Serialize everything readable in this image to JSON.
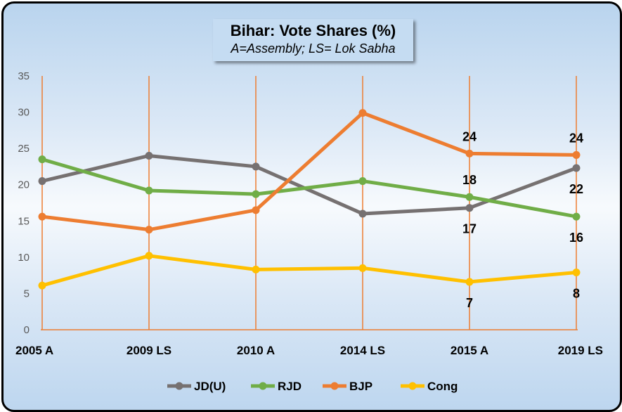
{
  "chart_data": {
    "type": "line",
    "title": "Bihar: Vote Shares (%)",
    "subtitle": "A=Assembly; LS= Lok Sabha",
    "categories": [
      "2005 A",
      "2009 LS",
      "2010 A",
      "2014 LS",
      "2015 A",
      "2019 LS"
    ],
    "ylim": [
      0,
      35
    ],
    "yticks": [
      0,
      5,
      10,
      15,
      20,
      25,
      30,
      35
    ],
    "grid": "vertical lines at categories",
    "legend_position": "bottom",
    "series": [
      {
        "name": "JD(U)",
        "color": "#767171",
        "values": [
          20.5,
          24.0,
          22.5,
          16.0,
          16.8,
          22.3
        ],
        "labels": [
          null,
          null,
          null,
          null,
          "17",
          "22"
        ],
        "label_pos": [
          "below",
          "below"
        ]
      },
      {
        "name": "RJD",
        "color": "#70ad47",
        "values": [
          23.5,
          19.2,
          18.7,
          20.5,
          18.3,
          15.6
        ],
        "labels": [
          null,
          null,
          null,
          null,
          "18",
          "16"
        ],
        "label_pos": [
          "above",
          "below"
        ]
      },
      {
        "name": "BJP",
        "color": "#ed7d31",
        "values": [
          15.6,
          13.8,
          16.5,
          29.9,
          24.3,
          24.1
        ],
        "labels": [
          null,
          null,
          null,
          null,
          "24",
          "24"
        ],
        "label_pos": [
          "above",
          "above"
        ]
      },
      {
        "name": "Cong",
        "color": "#ffc000",
        "values": [
          6.1,
          10.2,
          8.3,
          8.5,
          6.6,
          7.9
        ],
        "labels": [
          null,
          null,
          null,
          null,
          "7",
          "8"
        ],
        "label_pos": [
          "below",
          "below"
        ]
      }
    ]
  }
}
